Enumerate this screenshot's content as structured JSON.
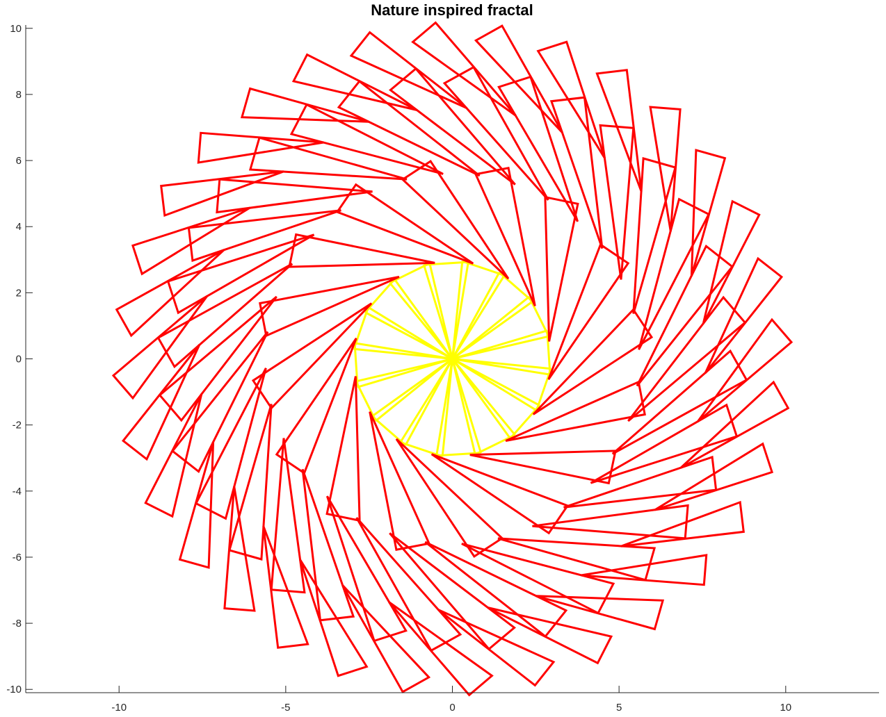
{
  "chart_data": {
    "type": "line",
    "title": "Nature inspired fractal",
    "xlabel": "",
    "ylabel": "",
    "xlim": [
      -12.8,
      12.8
    ],
    "ylim": [
      -10.1,
      10.1
    ],
    "xticks": [
      -10,
      -5,
      0,
      5,
      10
    ],
    "yticks": [
      -10,
      -8,
      -6,
      -4,
      -2,
      0,
      2,
      4,
      6,
      8,
      10
    ],
    "xtick_labels": [
      "-10",
      "-5",
      "0",
      "5",
      "10"
    ],
    "ytick_labels": [
      "-10",
      "-8",
      "-6",
      "-4",
      "-2",
      "0",
      "2",
      "4",
      "6",
      "8",
      "10"
    ],
    "grid": false,
    "legend": "none",
    "colors": {
      "inner": "#ffff00",
      "outer": "#ff0000",
      "axis": "#262626"
    },
    "generator": {
      "inner_count": 16,
      "inner_radius": 2.95,
      "inner_offset_deg": 15,
      "ring1_count": 16,
      "ring1_base": 2.95,
      "ring1_tip": 6.0,
      "ring1_width": 1.0,
      "ring1_twist_deg": 68,
      "ring2_count": 32,
      "ring2_base": 5.6,
      "ring2_tip": 9.0,
      "ring2_width": 1.0,
      "ring2_twist_deg": 60,
      "ring3_count": 32,
      "ring3_base": 7.6,
      "ring3_tip": 10.1,
      "ring3_width": 0.9,
      "ring3_twist_deg": 55
    },
    "series": [
      {
        "color": "yellow",
        "values": "16 thin spokes from the origin to a circle of radius about 2.95 (the rim of the inner polygon)"
      },
      {
        "color": "red",
        "values": "three rings of twisted triangles spiralling outward to a radius of about 10"
      }
    ]
  }
}
